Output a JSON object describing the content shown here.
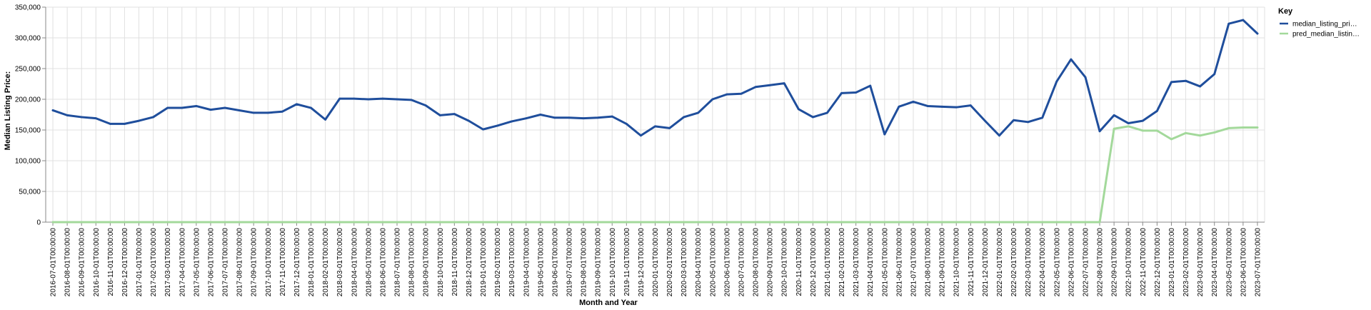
{
  "chart_data": {
    "type": "line",
    "xlabel": "Month and Year",
    "ylabel": "Median Listing Price:",
    "ylim": [
      0,
      350000
    ],
    "y_ticks": [
      "0",
      "50,000",
      "100,000",
      "150,000",
      "200,000",
      "250,000",
      "300,000",
      "350,000"
    ],
    "grid": true,
    "legend": {
      "title": "Key",
      "placement": "top-right"
    },
    "x": [
      "2016-07-01T00:00:00",
      "2016-08-01T00:00:00",
      "2016-09-01T00:00:00",
      "2016-10-01T00:00:00",
      "2016-11-01T00:00:00",
      "2016-12-01T00:00:00",
      "2017-01-01T00:00:00",
      "2017-02-01T00:00:00",
      "2017-03-01T00:00:00",
      "2017-04-01T00:00:00",
      "2017-05-01T00:00:00",
      "2017-06-01T00:00:00",
      "2017-07-01T00:00:00",
      "2017-08-01T00:00:00",
      "2017-09-01T00:00:00",
      "2017-10-01T00:00:00",
      "2017-11-01T00:00:00",
      "2017-12-01T00:00:00",
      "2018-01-01T00:00:00",
      "2018-02-01T00:00:00",
      "2018-03-01T00:00:00",
      "2018-04-01T00:00:00",
      "2018-05-01T00:00:00",
      "2018-06-01T00:00:00",
      "2018-07-01T00:00:00",
      "2018-08-01T00:00:00",
      "2018-09-01T00:00:00",
      "2018-10-01T00:00:00",
      "2018-11-01T00:00:00",
      "2018-12-01T00:00:00",
      "2019-01-01T00:00:00",
      "2019-02-01T00:00:00",
      "2019-03-01T00:00:00",
      "2019-04-01T00:00:00",
      "2019-05-01T00:00:00",
      "2019-06-01T00:00:00",
      "2019-07-01T00:00:00",
      "2019-08-01T00:00:00",
      "2019-09-01T00:00:00",
      "2019-10-01T00:00:00",
      "2019-11-01T00:00:00",
      "2019-12-01T00:00:00",
      "2020-01-01T00:00:00",
      "2020-02-01T00:00:00",
      "2020-03-01T00:00:00",
      "2020-04-01T00:00:00",
      "2020-05-01T00:00:00",
      "2020-06-01T00:00:00",
      "2020-07-01T00:00:00",
      "2020-08-01T00:00:00",
      "2020-09-01T00:00:00",
      "2020-10-01T00:00:00",
      "2020-11-01T00:00:00",
      "2020-12-01T00:00:00",
      "2021-01-01T00:00:00",
      "2021-02-01T00:00:00",
      "2021-03-01T00:00:00",
      "2021-04-01T00:00:00",
      "2021-05-01T00:00:00",
      "2021-06-01T00:00:00",
      "2021-07-01T00:00:00",
      "2021-08-01T00:00:00",
      "2021-09-01T00:00:00",
      "2021-10-01T00:00:00",
      "2021-11-01T00:00:00",
      "2021-12-01T00:00:00",
      "2022-01-01T00:00:00",
      "2022-02-01T00:00:00",
      "2022-03-01T00:00:00",
      "2022-04-01T00:00:00",
      "2022-05-01T00:00:00",
      "2022-06-01T00:00:00",
      "2022-07-01T00:00:00",
      "2022-08-01T00:00:00",
      "2022-09-01T00:00:00",
      "2022-10-01T00:00:00",
      "2022-11-01T00:00:00",
      "2022-12-01T00:00:00",
      "2023-01-01T00:00:00",
      "2023-02-01T00:00:00",
      "2023-03-01T00:00:00",
      "2023-04-01T00:00:00",
      "2023-05-01T00:00:00",
      "2023-06-01T00:00:00",
      "2023-07-01T00:00:00"
    ],
    "series": [
      {
        "name": "median_listing_pri…",
        "color": "#1f4e9c",
        "values": [
          182000,
          174000,
          171000,
          169000,
          160000,
          160000,
          165000,
          171000,
          186000,
          186000,
          189000,
          183000,
          186000,
          182000,
          178000,
          178000,
          180000,
          192000,
          186000,
          167000,
          201000,
          201000,
          200000,
          201000,
          200000,
          199000,
          190000,
          174000,
          176000,
          165000,
          151000,
          157000,
          164000,
          169000,
          175000,
          170000,
          170000,
          169000,
          170000,
          172000,
          160000,
          141000,
          156000,
          153000,
          171000,
          178000,
          200000,
          208000,
          209000,
          220000,
          223000,
          226000,
          184000,
          171000,
          178000,
          210000,
          211000,
          222000,
          143000,
          188000,
          196000,
          189000,
          188000,
          187000,
          190000,
          165000,
          141000,
          166000,
          163000,
          170000,
          229000,
          265000,
          236000,
          148000,
          174000,
          161000,
          165000,
          181000,
          228000,
          230000,
          221000,
          241000,
          323000,
          329000,
          307000
        ]
      },
      {
        "name": "pred_median_listin…",
        "color": "#a3d99b",
        "values": [
          0,
          0,
          0,
          0,
          0,
          0,
          0,
          0,
          0,
          0,
          0,
          0,
          0,
          0,
          0,
          0,
          0,
          0,
          0,
          0,
          0,
          0,
          0,
          0,
          0,
          0,
          0,
          0,
          0,
          0,
          0,
          0,
          0,
          0,
          0,
          0,
          0,
          0,
          0,
          0,
          0,
          0,
          0,
          0,
          0,
          0,
          0,
          0,
          0,
          0,
          0,
          0,
          0,
          0,
          0,
          0,
          0,
          0,
          0,
          0,
          0,
          0,
          0,
          0,
          0,
          0,
          0,
          0,
          0,
          0,
          0,
          0,
          0,
          0,
          152000,
          156000,
          149000,
          149000,
          135000,
          145000,
          141000,
          146000,
          153000,
          154000,
          154000
        ]
      }
    ]
  }
}
